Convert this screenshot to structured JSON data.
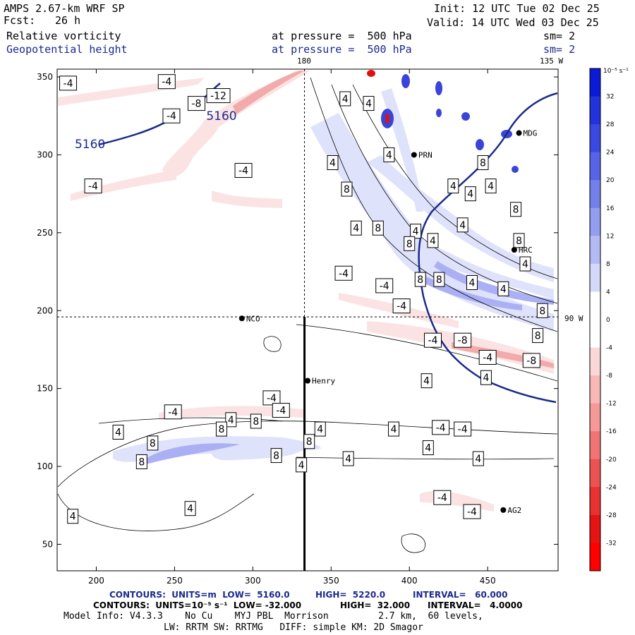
{
  "header": {
    "model": "AMPS 2.67-km WRF SP",
    "fcst_label": "Fcst:",
    "fcst_value": "26 h",
    "init": "Init: 12 UTC Tue 02 Dec 25",
    "valid": "Valid: 14 UTC Wed 03 Dec 25",
    "field1": "Relative vorticity",
    "field2": "Geopotential height",
    "pressure1": "at pressure =  500 hPa",
    "pressure2": "at pressure =  500 hPa",
    "sm1": "sm= 2",
    "sm2": "sm= 2"
  },
  "colors": {
    "height_contour": "#1a2a8c",
    "vort_pos_light": "#dfe2fb",
    "vort_pos_mid": "#aab0f3",
    "vort_pos_dark": "#3a45d8",
    "vort_neg_light": "#fbe3e3",
    "vort_neg_mid": "#f3aaaa",
    "vort_neg_dark": "#e01010",
    "coast": "#1a2a8c"
  },
  "chart_data": {
    "type": "contour",
    "title": "Relative vorticity / Geopotential height at 500 hPa",
    "xlim": [
      175,
      495
    ],
    "ylim": [
      33,
      355
    ],
    "x_ticks": [
      200,
      250,
      300,
      350,
      400,
      450
    ],
    "y_ticks": [
      50,
      100,
      150,
      200,
      250,
      300,
      350
    ],
    "meridian_labels": {
      "top_180": "180",
      "top_135w": "135 W",
      "right_90w": "90 W"
    },
    "reference_lines": {
      "x": 333,
      "y": 196
    },
    "cross_section": {
      "x": 333,
      "y_from": 33,
      "y_to": 196
    },
    "height_contour_labels": [
      {
        "text": "5160",
        "x": 196,
        "y": 307
      },
      {
        "text": "5160",
        "x": 280,
        "y": 325
      }
    ],
    "stations": [
      {
        "name": "NCO",
        "x": 293,
        "y": 195
      },
      {
        "name": "Henry",
        "x": 335,
        "y": 155
      },
      {
        "name": "AG2",
        "x": 460,
        "y": 72
      },
      {
        "name": "HRC",
        "x": 467,
        "y": 239
      },
      {
        "name": "MDG",
        "x": 470,
        "y": 314
      },
      {
        "name": "PRN",
        "x": 403,
        "y": 300
      }
    ],
    "vorticity_labels": [
      {
        "text": "-4",
        "x": 182,
        "y": 346
      },
      {
        "text": "-4",
        "x": 245,
        "y": 347
      },
      {
        "text": "-4",
        "x": 248,
        "y": 325
      },
      {
        "text": "-8",
        "x": 264,
        "y": 333
      },
      {
        "text": "-12",
        "x": 278,
        "y": 338
      },
      {
        "text": "-4",
        "x": 198,
        "y": 280
      },
      {
        "text": "-4",
        "x": 294,
        "y": 290
      },
      {
        "text": "4",
        "x": 359,
        "y": 336
      },
      {
        "text": "4",
        "x": 374,
        "y": 333
      },
      {
        "text": "4",
        "x": 387,
        "y": 300
      },
      {
        "text": "4",
        "x": 351,
        "y": 295
      },
      {
        "text": "8",
        "x": 360,
        "y": 278
      },
      {
        "text": "4",
        "x": 366,
        "y": 253
      },
      {
        "text": "8",
        "x": 380,
        "y": 253
      },
      {
        "text": "4",
        "x": 404,
        "y": 251
      },
      {
        "text": "4",
        "x": 428,
        "y": 280
      },
      {
        "text": "4",
        "x": 439,
        "y": 275
      },
      {
        "text": "8",
        "x": 447,
        "y": 295
      },
      {
        "text": "4",
        "x": 452,
        "y": 280
      },
      {
        "text": "8",
        "x": 468,
        "y": 265
      },
      {
        "text": "4",
        "x": 434,
        "y": 255
      },
      {
        "text": "4",
        "x": 415,
        "y": 245
      },
      {
        "text": "8",
        "x": 400,
        "y": 243
      },
      {
        "text": "8",
        "x": 470,
        "y": 245
      },
      {
        "text": "4",
        "x": 474,
        "y": 230
      },
      {
        "text": "-4",
        "x": 358,
        "y": 224
      },
      {
        "text": "-4",
        "x": 384,
        "y": 216
      },
      {
        "text": "8",
        "x": 407,
        "y": 220
      },
      {
        "text": "8",
        "x": 419,
        "y": 220
      },
      {
        "text": "4",
        "x": 440,
        "y": 218
      },
      {
        "text": "4",
        "x": 460,
        "y": 214
      },
      {
        "text": "-4",
        "x": 395,
        "y": 203
      },
      {
        "text": "8",
        "x": 485,
        "y": 200
      },
      {
        "text": "-4",
        "x": 415,
        "y": 181
      },
      {
        "text": "-8",
        "x": 434,
        "y": 181
      },
      {
        "text": "8",
        "x": 482,
        "y": 184
      },
      {
        "text": "-4",
        "x": 450,
        "y": 170
      },
      {
        "text": "-8",
        "x": 478,
        "y": 168
      },
      {
        "text": "4",
        "x": 411,
        "y": 155
      },
      {
        "text": "4",
        "x": 449,
        "y": 157
      },
      {
        "text": "-4",
        "x": 312,
        "y": 144
      },
      {
        "text": "-4",
        "x": 249,
        "y": 135
      },
      {
        "text": "-4",
        "x": 318,
        "y": 136
      },
      {
        "text": "4",
        "x": 286,
        "y": 130
      },
      {
        "text": "8",
        "x": 302,
        "y": 129
      },
      {
        "text": "8",
        "x": 280,
        "y": 124
      },
      {
        "text": "4",
        "x": 214,
        "y": 122
      },
      {
        "text": "8",
        "x": 236,
        "y": 115
      },
      {
        "text": "4",
        "x": 343,
        "y": 124
      },
      {
        "text": "4",
        "x": 390,
        "y": 124
      },
      {
        "text": "-4",
        "x": 420,
        "y": 125
      },
      {
        "text": "-4",
        "x": 434,
        "y": 124
      },
      {
        "text": "8",
        "x": 336,
        "y": 116
      },
      {
        "text": "4",
        "x": 412,
        "y": 112
      },
      {
        "text": "8",
        "x": 229,
        "y": 103
      },
      {
        "text": "8",
        "x": 315,
        "y": 107
      },
      {
        "text": "4",
        "x": 331,
        "y": 101
      },
      {
        "text": "4",
        "x": 361,
        "y": 105
      },
      {
        "text": "4",
        "x": 444,
        "y": 105
      },
      {
        "text": "-4",
        "x": 421,
        "y": 80
      },
      {
        "text": "-4",
        "x": 440,
        "y": 71
      },
      {
        "text": "4",
        "x": 260,
        "y": 73
      },
      {
        "text": "4",
        "x": 185,
        "y": 68
      }
    ],
    "colorbar": {
      "unit": "10⁻⁵ s⁻¹",
      "ticks": [
        32,
        28,
        24,
        20,
        16,
        12,
        8,
        4,
        0,
        -4,
        -8,
        -12,
        -16,
        -20,
        -24,
        -28,
        -32
      ],
      "colors": [
        "#0b1ad6",
        "#2233dc",
        "#3a4ae0",
        "#5664e5",
        "#7480ea",
        "#949eef",
        "#b4bbf4",
        "#d4d8f9",
        "#ffffff",
        "#ffffff",
        "#fbd8d8",
        "#f8b8b8",
        "#f49898",
        "#f07474",
        "#ec5252",
        "#e83232",
        "#e41414",
        "#ff0000"
      ]
    }
  },
  "footer": {
    "line1_prefix": "CONTOURS:  UNITS=m  LOW=  5160.0",
    "line1_high": "HIGH=  5220.0",
    "line1_interval": "INTERVAL=   60.000",
    "line2_prefix": "CONTOURS:  UNITS=10⁻⁵ s⁻¹  LOW= -32.000",
    "line2_high": "HIGH=  32.000",
    "line2_interval": "INTERVAL=   4.0000",
    "line3": "Model Info: V4.3.3    No Cu    MYJ PBL  Morrison         2.7 km,  60 levels,",
    "line4": "LW: RRTM SW: RRTMG   DIFF: simple KM: 2D Smagor"
  }
}
